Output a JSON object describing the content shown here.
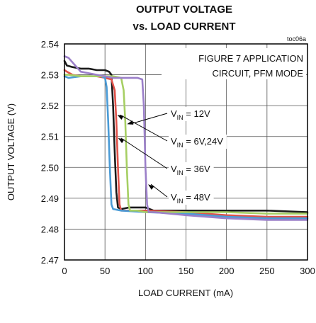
{
  "chart_data": {
    "type": "line",
    "title": "OUTPUT VOLTAGE",
    "subtitle": "vs. LOAD CURRENT",
    "figure_code": "toc06a",
    "xlabel": "LOAD CURRENT (mA)",
    "ylabel": "OUTPUT VOLTAGE (V)",
    "xlim": [
      0,
      300
    ],
    "ylim": [
      2.47,
      2.54
    ],
    "x_ticks": [
      "0",
      "50",
      "100",
      "150",
      "200",
      "250",
      "300"
    ],
    "y_ticks": [
      "2.47",
      "2.48",
      "2.49",
      "2.50",
      "2.51",
      "2.52",
      "2.53",
      "2.54"
    ],
    "grid": true,
    "annotation": [
      "FIGURE 7 APPLICATION",
      "CIRCUIT, PFM MODE"
    ],
    "series": [
      {
        "color": "#1a1a1a",
        "label_main": "V",
        "label_sub": "IN",
        "label_rest": " = 12V",
        "points": [
          [
            0,
            2.5345
          ],
          [
            3,
            2.533
          ],
          [
            10,
            2.5325
          ],
          [
            20,
            2.532
          ],
          [
            30,
            2.532
          ],
          [
            40,
            2.5315
          ],
          [
            50,
            2.5315
          ],
          [
            55,
            2.531
          ],
          [
            58,
            2.53
          ],
          [
            60,
            2.52
          ],
          [
            62,
            2.505
          ],
          [
            64,
            2.492
          ],
          [
            66,
            2.487
          ],
          [
            70,
            2.4865
          ],
          [
            80,
            2.487
          ],
          [
            100,
            2.487
          ],
          [
            110,
            2.486
          ],
          [
            150,
            2.486
          ],
          [
            200,
            2.486
          ],
          [
            250,
            2.486
          ],
          [
            300,
            2.4855
          ]
        ]
      },
      {
        "color": "#e0524a",
        "label_main": "V",
        "label_sub": "IN",
        "label_rest": " = 6V,24V",
        "points": [
          [
            0,
            2.5315
          ],
          [
            3,
            2.531
          ],
          [
            10,
            2.53
          ],
          [
            20,
            2.5295
          ],
          [
            30,
            2.5295
          ],
          [
            40,
            2.5295
          ],
          [
            50,
            2.529
          ],
          [
            58,
            2.5285
          ],
          [
            62,
            2.525
          ],
          [
            64,
            2.515
          ],
          [
            66,
            2.5
          ],
          [
            68,
            2.488
          ],
          [
            70,
            2.486
          ],
          [
            80,
            2.486
          ],
          [
            100,
            2.486
          ],
          [
            150,
            2.4855
          ],
          [
            200,
            2.4845
          ],
          [
            250,
            2.484
          ],
          [
            300,
            2.484
          ]
        ]
      },
      {
        "color": "#4a9bd6",
        "label_main": "V",
        "label_sub": "IN",
        "label_rest": " = 36V",
        "points": [
          [
            0,
            2.5295
          ],
          [
            5,
            2.529
          ],
          [
            20,
            2.5295
          ],
          [
            30,
            2.5295
          ],
          [
            45,
            2.5295
          ],
          [
            50,
            2.529
          ],
          [
            52,
            2.526
          ],
          [
            54,
            2.515
          ],
          [
            56,
            2.5
          ],
          [
            58,
            2.488
          ],
          [
            60,
            2.4865
          ],
          [
            70,
            2.486
          ],
          [
            100,
            2.4855
          ],
          [
            150,
            2.485
          ],
          [
            200,
            2.484
          ],
          [
            250,
            2.4835
          ],
          [
            300,
            2.4835
          ]
        ]
      },
      {
        "color": "#a6cf63",
        "label_main": "V",
        "label_sub": "IN",
        "label_rest": " = 48V",
        "points": [
          [
            0,
            2.53
          ],
          [
            5,
            2.53
          ],
          [
            20,
            2.5295
          ],
          [
            40,
            2.5295
          ],
          [
            60,
            2.5295
          ],
          [
            70,
            2.529
          ],
          [
            73,
            2.525
          ],
          [
            75,
            2.515
          ],
          [
            77,
            2.5
          ],
          [
            79,
            2.488
          ],
          [
            81,
            2.486
          ],
          [
            90,
            2.486
          ],
          [
            100,
            2.4855
          ],
          [
            150,
            2.4855
          ],
          [
            200,
            2.4855
          ],
          [
            250,
            2.485
          ],
          [
            300,
            2.485
          ]
        ]
      },
      {
        "color": "#9b7fc9",
        "points": [
          [
            0,
            2.536
          ],
          [
            5,
            2.5355
          ],
          [
            10,
            2.534
          ],
          [
            20,
            2.531
          ],
          [
            30,
            2.5305
          ],
          [
            40,
            2.53
          ],
          [
            50,
            2.5295
          ],
          [
            60,
            2.529
          ],
          [
            70,
            2.529
          ],
          [
            90,
            2.529
          ],
          [
            96,
            2.5285
          ],
          [
            98,
            2.52
          ],
          [
            100,
            2.5
          ],
          [
            102,
            2.488
          ],
          [
            104,
            2.4855
          ],
          [
            110,
            2.4855
          ],
          [
            150,
            2.4845
          ],
          [
            200,
            2.4835
          ],
          [
            250,
            2.483
          ],
          [
            300,
            2.483
          ]
        ]
      }
    ]
  }
}
